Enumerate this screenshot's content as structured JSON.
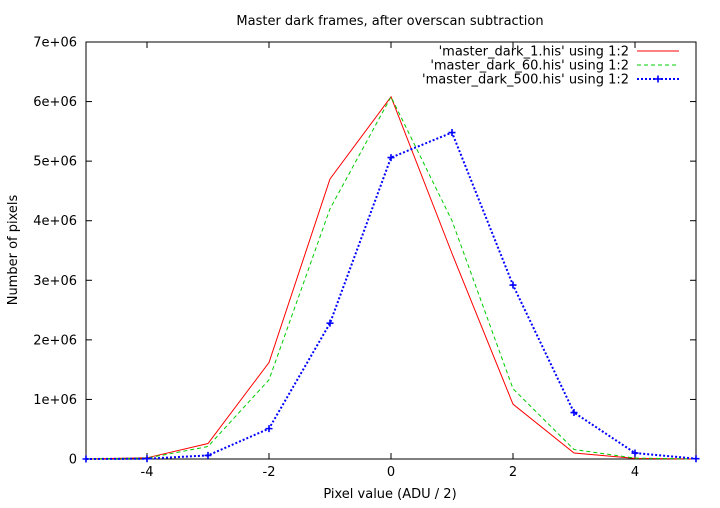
{
  "chart_data": {
    "type": "line",
    "title": "Master dark frames, after overscan subtraction",
    "xlabel": "Pixel value (ADU / 2)",
    "ylabel": "Number of pixels",
    "xlim": [
      -5,
      5
    ],
    "ylim": [
      0,
      7000000
    ],
    "x_ticks": [
      -4,
      -2,
      0,
      2,
      4
    ],
    "x_tick_labels": [
      "-4",
      "-2",
      "0",
      "2",
      "4"
    ],
    "y_ticks": [
      0,
      1000000,
      2000000,
      3000000,
      4000000,
      5000000,
      6000000,
      7000000
    ],
    "y_tick_labels": [
      "0",
      "1e+06",
      "2e+06",
      "3e+06",
      "4e+06",
      "5e+06",
      "6e+06",
      "7e+06"
    ],
    "grid": false,
    "legend_position": "top-right",
    "x": [
      -5,
      -4,
      -3,
      -2,
      -1,
      0,
      1,
      2,
      3,
      4,
      5
    ],
    "series": [
      {
        "name": "'master_dark_1.his' using 1:2",
        "color": "#ff0000",
        "style": "solid",
        "markers": false,
        "values": [
          0,
          20000,
          260000,
          1620000,
          4700000,
          6080000,
          3450000,
          920000,
          100000,
          10000,
          0
        ]
      },
      {
        "name": "'master_dark_60.his' using 1:2",
        "color": "#00cc00",
        "style": "dashed",
        "markers": false,
        "values": [
          0,
          15000,
          210000,
          1330000,
          4200000,
          6080000,
          4000000,
          1180000,
          160000,
          15000,
          0
        ]
      },
      {
        "name": "'master_dark_500.his' using 1:2",
        "color": "#0000ff",
        "style": "dotted",
        "markers": true,
        "values": [
          0,
          5000,
          60000,
          510000,
          2280000,
          5060000,
          5480000,
          2920000,
          780000,
          100000,
          5000
        ]
      }
    ]
  }
}
